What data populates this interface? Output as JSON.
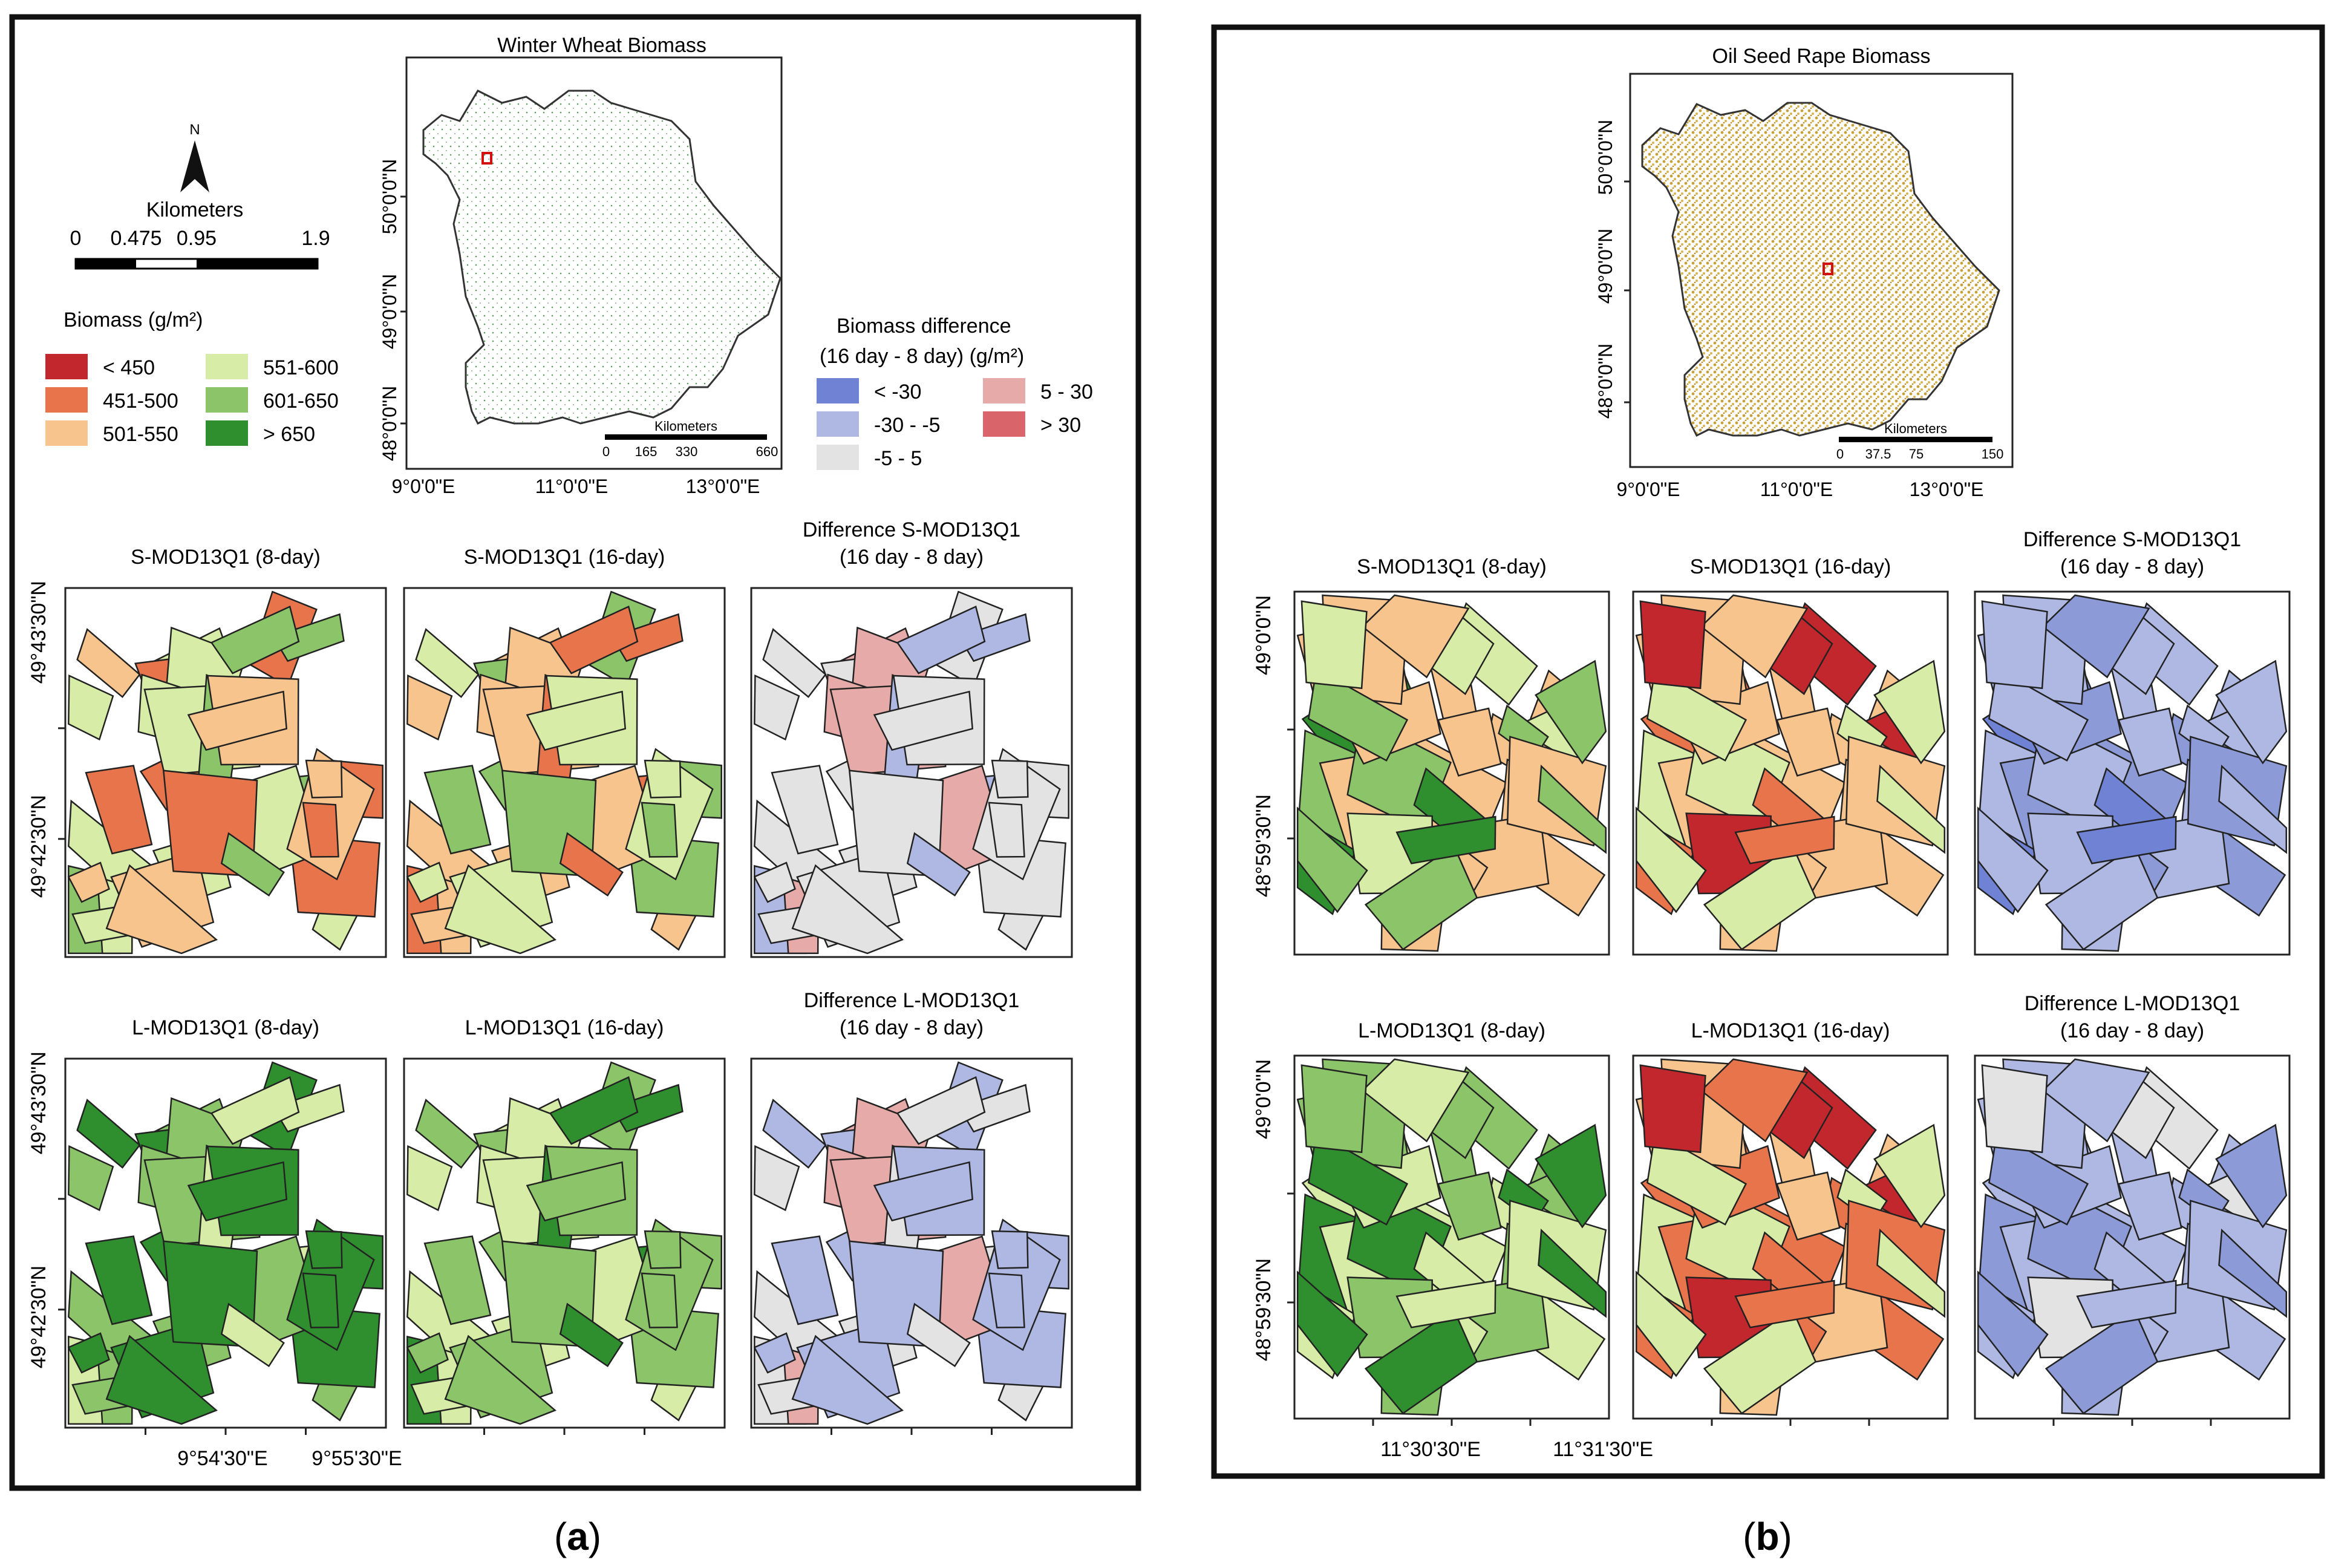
{
  "panel_a": {
    "map_title": "Winter Wheat Biomass",
    "north": "N",
    "scale_title": "Kilometers",
    "scale_ticks": [
      "0",
      "0.475",
      "0.95",
      "1.9"
    ],
    "biomass_legend_title": "Biomass (g/m²)",
    "biomass_classes": [
      {
        "label": "< 450",
        "color": "#c1272d"
      },
      {
        "label": "451-500",
        "color": "#e8744c"
      },
      {
        "label": "501-550",
        "color": "#f8c48e"
      },
      {
        "label": "551-600",
        "color": "#d7eca6"
      },
      {
        "label": "601-650",
        "color": "#8cc46a"
      },
      {
        "label": "> 650",
        "color": "#2f8f2f"
      }
    ],
    "diff_legend_title_1": "Biomass difference",
    "diff_legend_title_2": "(16 day - 8 day) (g/m²)",
    "diff_classes": [
      {
        "label": "< -30",
        "color": "#6f82d4"
      },
      {
        "label": "-30 - -5",
        "color": "#aeb8e2"
      },
      {
        "label": "-5 - 5",
        "color": "#e3e3e3"
      },
      {
        "label": "5 - 30",
        "color": "#e6aaa8"
      },
      {
        "label": "> 30",
        "color": "#d9646a"
      }
    ],
    "overview_lat_labels": [
      "50°0'0\"N",
      "49°0'0\"N",
      "48°0'0\"N"
    ],
    "overview_lon_labels": [
      "9°0'0\"E",
      "11°0'0\"E",
      "13°0'0\"E"
    ],
    "overview_scale_title": "Kilometers",
    "overview_scale_ticks": [
      "0",
      "165",
      "330",
      "660"
    ],
    "row1_titles": [
      "S-MOD13Q1 (8-day)",
      "S-MOD13Q1 (16-day)",
      "Difference S-MOD13Q1",
      "(16 day - 8 day)"
    ],
    "row2_titles": [
      "L-MOD13Q1 (8-day)",
      "L-MOD13Q1 (16-day)",
      "Difference L-MOD13Q1",
      "(16 day - 8 day)"
    ],
    "lat_labels": [
      "49°43'30\"N",
      "49°42'30\"N"
    ],
    "lon_labels": [
      "9°54'30\"E",
      "9°55'30\"E"
    ],
    "caption_letter": "a"
  },
  "panel_b": {
    "map_title": "Oil Seed Rape Biomass",
    "overview_lat_labels": [
      "50°0'0\"N",
      "49°0'0\"N",
      "48°0'0\"N"
    ],
    "overview_lon_labels": [
      "9°0'0\"E",
      "11°0'0\"E",
      "13°0'0\"E"
    ],
    "overview_scale_title": "Kilometers",
    "overview_scale_ticks": [
      "0",
      "37.5",
      "75",
      "150"
    ],
    "row1_titles": [
      "S-MOD13Q1 (8-day)",
      "S-MOD13Q1 (16-day)",
      "Difference S-MOD13Q1",
      "(16 day - 8 day)"
    ],
    "row2_titles": [
      "L-MOD13Q1 (8-day)",
      "L-MOD13Q1 (16-day)",
      "Difference L-MOD13Q1",
      "(16 day - 8 day)"
    ],
    "lat_labels": [
      "49°0'0\"N",
      "48°59'30\"N"
    ],
    "lon_labels": [
      "11°30'30\"E",
      "11°31'30\"E"
    ],
    "caption_letter": "b"
  }
}
